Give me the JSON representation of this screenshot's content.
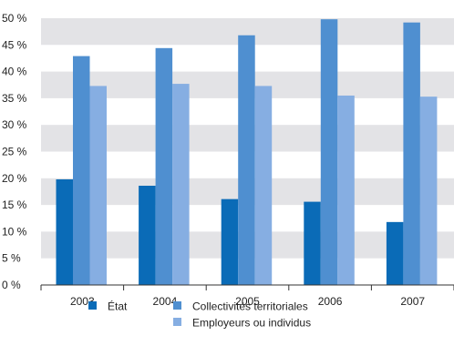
{
  "chart_data": {
    "type": "bar",
    "categories": [
      "2003",
      "2004",
      "2005",
      "2006",
      "2007"
    ],
    "series": [
      {
        "name": "État",
        "color": "#0a6bb7",
        "values": [
          19.8,
          18.6,
          16.1,
          15.6,
          11.8
        ]
      },
      {
        "name": "Collectivités territoriales",
        "color": "#4f8fd0",
        "values": [
          42.9,
          44.4,
          46.8,
          49.8,
          49.2
        ]
      },
      {
        "name": "Employeurs ou individus",
        "color": "#86aee2",
        "values": [
          37.3,
          37.7,
          37.3,
          35.5,
          35.3
        ]
      }
    ],
    "ylim": [
      0,
      50
    ],
    "yticks": [
      0,
      5,
      10,
      15,
      20,
      25,
      30,
      35,
      40,
      45,
      50
    ],
    "ytick_labels": [
      "0 %",
      "5 %",
      "10 %",
      "15 %",
      "20 %",
      "25 %",
      "30 %",
      "35 %",
      "40 %",
      "45 %",
      "50 %"
    ],
    "grid": "alternating horizontal bands",
    "band_color": "#e3e3e6",
    "legend_position": "bottom",
    "title": "",
    "xlabel": "",
    "ylabel": ""
  }
}
